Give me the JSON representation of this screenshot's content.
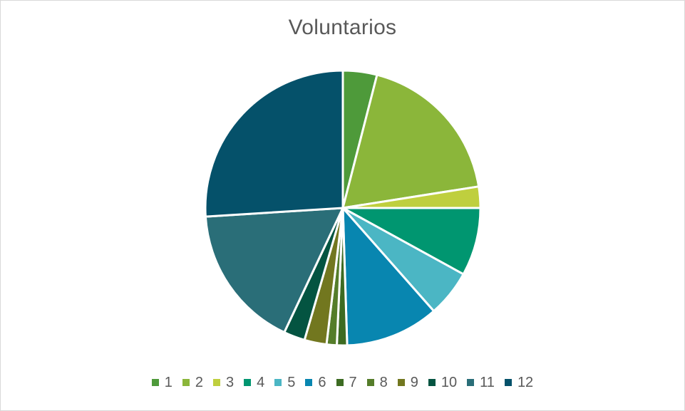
{
  "chart_data": {
    "type": "pie",
    "title": "Voluntarios",
    "categories": [
      "1",
      "2",
      "3",
      "4",
      "5",
      "6",
      "7",
      "8",
      "9",
      "10",
      "11",
      "12"
    ],
    "values": [
      4.0,
      18.5,
      2.5,
      8.0,
      5.5,
      11.0,
      1.2,
      1.2,
      2.6,
      2.5,
      17.0,
      26.0
    ],
    "colors": [
      "#4e9a3a",
      "#8bb63a",
      "#bfcf3e",
      "#009670",
      "#4bb6c4",
      "#0886b0",
      "#3d6b22",
      "#557d2a",
      "#72771f",
      "#045441",
      "#2a6e78",
      "#05516a"
    ],
    "legend_position": "bottom",
    "start_angle_deg": 0,
    "direction": "clockwise"
  }
}
